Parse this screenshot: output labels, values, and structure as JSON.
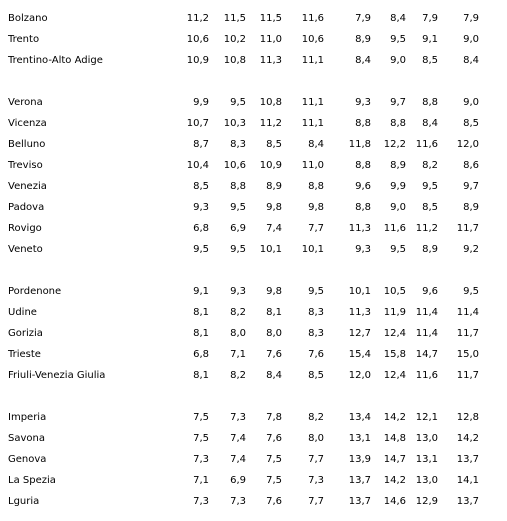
{
  "table": {
    "groups": [
      {
        "rows": [
          {
            "label": "Bolzano",
            "values": [
              "11,2",
              "11,5",
              "11,5",
              "11,6",
              "7,9",
              "8,4",
              "7,9",
              "7,9"
            ]
          },
          {
            "label": "Trento",
            "values": [
              "10,6",
              "10,2",
              "11,0",
              "10,6",
              "8,9",
              "9,5",
              "9,1",
              "9,0"
            ]
          },
          {
            "label": "Trentino-Alto Adige",
            "values": [
              "10,9",
              "10,8",
              "11,3",
              "11,1",
              "8,4",
              "9,0",
              "8,5",
              "8,4"
            ]
          }
        ]
      },
      {
        "rows": [
          {
            "label": "Verona",
            "values": [
              "9,9",
              "9,5",
              "10,8",
              "11,1",
              "9,3",
              "9,7",
              "8,8",
              "9,0"
            ]
          },
          {
            "label": "Vicenza",
            "values": [
              "10,7",
              "10,3",
              "11,2",
              "11,1",
              "8,8",
              "8,8",
              "8,4",
              "8,5"
            ]
          },
          {
            "label": "Belluno",
            "values": [
              "8,7",
              "8,3",
              "8,5",
              "8,4",
              "11,8",
              "12,2",
              "11,6",
              "12,0"
            ]
          },
          {
            "label": "Treviso",
            "values": [
              "10,4",
              "10,6",
              "10,9",
              "11,0",
              "8,8",
              "8,9",
              "8,2",
              "8,6"
            ]
          },
          {
            "label": "Venezia",
            "values": [
              "8,5",
              "8,8",
              "8,9",
              "8,8",
              "9,6",
              "9,9",
              "9,5",
              "9,7"
            ]
          },
          {
            "label": "Padova",
            "values": [
              "9,3",
              "9,5",
              "9,8",
              "9,8",
              "8,8",
              "9,0",
              "8,5",
              "8,9"
            ]
          },
          {
            "label": "Rovigo",
            "values": [
              "6,8",
              "6,9",
              "7,4",
              "7,7",
              "11,3",
              "11,6",
              "11,2",
              "11,7"
            ]
          },
          {
            "label": "Veneto",
            "values": [
              "9,5",
              "9,5",
              "10,1",
              "10,1",
              "9,3",
              "9,5",
              "8,9",
              "9,2"
            ]
          }
        ]
      },
      {
        "rows": [
          {
            "label": "Pordenone",
            "values": [
              "9,1",
              "9,3",
              "9,8",
              "9,5",
              "10,1",
              "10,5",
              "9,6",
              "9,5"
            ]
          },
          {
            "label": "Udine",
            "values": [
              "8,1",
              "8,2",
              "8,1",
              "8,3",
              "11,3",
              "11,9",
              "11,4",
              "11,4"
            ]
          },
          {
            "label": "Gorizia",
            "values": [
              "8,1",
              "8,0",
              "8,0",
              "8,3",
              "12,7",
              "12,4",
              "11,4",
              "11,7"
            ]
          },
          {
            "label": "Trieste",
            "values": [
              "6,8",
              "7,1",
              "7,6",
              "7,6",
              "15,4",
              "15,8",
              "14,7",
              "15,0"
            ]
          },
          {
            "label": "Friuli-Venezia Giulia",
            "values": [
              "8,1",
              "8,2",
              "8,4",
              "8,5",
              "12,0",
              "12,4",
              "11,6",
              "11,7"
            ]
          }
        ]
      },
      {
        "rows": [
          {
            "label": "Imperia",
            "values": [
              "7,5",
              "7,3",
              "7,8",
              "8,2",
              "13,4",
              "14,2",
              "12,1",
              "12,8"
            ]
          },
          {
            "label": "Savona",
            "values": [
              "7,5",
              "7,4",
              "7,6",
              "8,0",
              "13,1",
              "14,8",
              "13,0",
              "14,2"
            ]
          },
          {
            "label": "Genova",
            "values": [
              "7,3",
              "7,4",
              "7,5",
              "7,7",
              "13,9",
              "14,7",
              "13,1",
              "13,7"
            ]
          },
          {
            "label": "La Spezia",
            "values": [
              "7,1",
              "6,9",
              "7,5",
              "7,3",
              "13,7",
              "14,2",
              "13,0",
              "14,1"
            ]
          },
          {
            "label": "Lguria",
            "values": [
              "7,3",
              "7,3",
              "7,6",
              "7,7",
              "13,7",
              "14,6",
              "12,9",
              "13,7"
            ]
          }
        ]
      }
    ]
  }
}
